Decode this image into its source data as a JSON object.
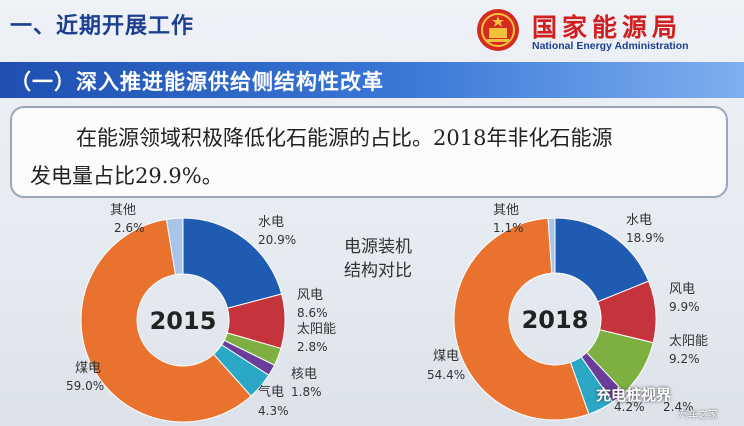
{
  "header": {
    "section_title": "一、近期开展工作",
    "logo_cn": "国家能源局",
    "logo_en": "National Energy Administration"
  },
  "banner": {
    "text": "（一）深入推进能源供给侧结构性改革"
  },
  "textbox": {
    "line1": "在能源领域积极降低化石能源的占比。2018年非化石能源",
    "line2": "发电量占比29.9%。"
  },
  "center_label": [
    "电源装机",
    "结构对比"
  ],
  "colors": {
    "hydro": "#1f5bb0",
    "wind": "#c5333d",
    "solar": "#7eb041",
    "nuclear": "#6a3d9a",
    "gas": "#2aa8c6",
    "coal": "#e9722e",
    "other": "#a8c4e6"
  },
  "chart_data": [
    {
      "type": "pie",
      "title": "2015",
      "slices": [
        {
          "name": "水电",
          "value": 20.9,
          "label": "20.9%"
        },
        {
          "name": "风电",
          "value": 8.6,
          "label": "8.6%"
        },
        {
          "name": "太阳能",
          "value": 2.8,
          "label": "2.8%"
        },
        {
          "name": "核电",
          "value": 1.8,
          "label": "1.8%"
        },
        {
          "name": "气电",
          "value": 4.3,
          "label": "4.3%"
        },
        {
          "name": "煤电",
          "value": 59.0,
          "label": "59.0%"
        },
        {
          "name": "其他",
          "value": 2.6,
          "label": "2.6%"
        }
      ]
    },
    {
      "type": "pie",
      "title": "2018",
      "slices": [
        {
          "name": "水电",
          "value": 18.9,
          "label": "18.9%"
        },
        {
          "name": "风电",
          "value": 9.9,
          "label": "9.9%"
        },
        {
          "name": "太阳能",
          "value": 9.2,
          "label": "9.2%"
        },
        {
          "name": "核电",
          "value": 2.4,
          "label": "2.4%"
        },
        {
          "name": "气电",
          "value": 4.2,
          "label": "4.2%"
        },
        {
          "name": "煤电",
          "value": 54.4,
          "label": "54.4%"
        },
        {
          "name": "其他",
          "value": 1.1,
          "label": "1.1%"
        }
      ]
    }
  ],
  "watermark": {
    "main": "充电桩视界",
    "sub": "汽车之家"
  }
}
